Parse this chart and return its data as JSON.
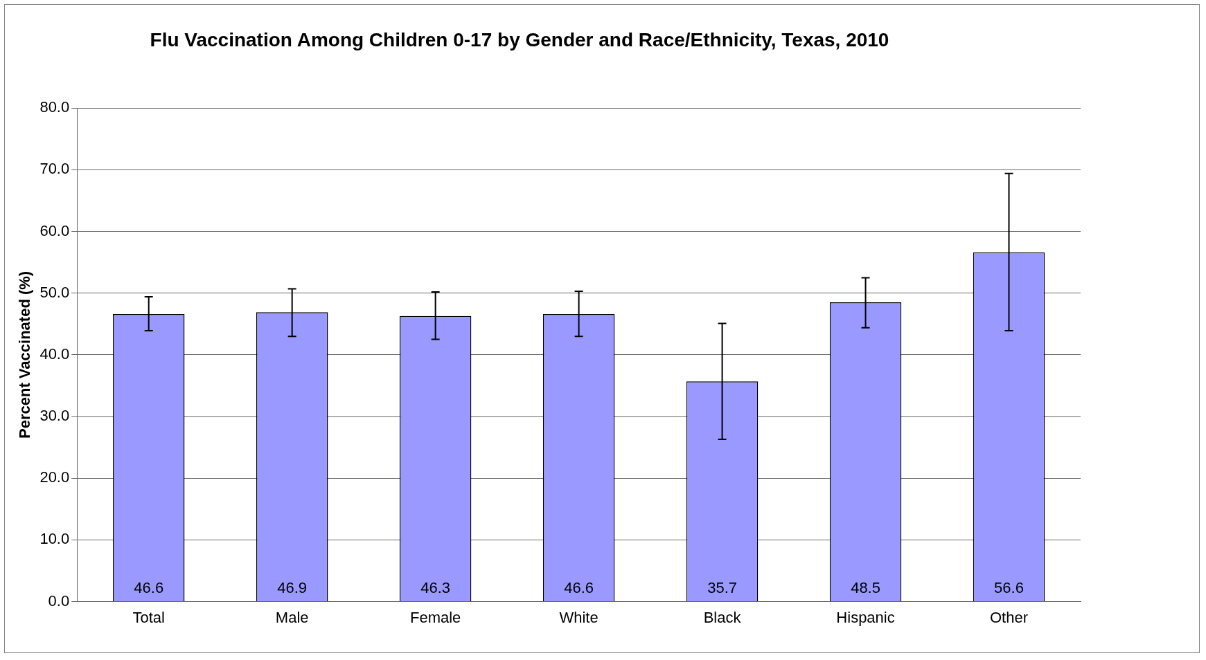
{
  "chart_data": {
    "type": "bar",
    "title": "Flu Vaccination Among Children 0-17 by Gender and Race/Ethnicity, Texas, 2010",
    "ylabel": "Percent Vaccinated (%)",
    "categories": [
      "Total",
      "Male",
      "Female",
      "White",
      "Black",
      "Hispanic",
      "Other"
    ],
    "values": [
      46.6,
      46.9,
      46.3,
      46.6,
      35.7,
      48.5,
      56.6
    ],
    "color": "#9999ff",
    "errors": [
      [
        43.9,
        49.4
      ],
      [
        43.0,
        50.7
      ],
      [
        42.5,
        50.2
      ],
      [
        43.0,
        50.3
      ],
      [
        26.3,
        45.1
      ],
      [
        44.4,
        52.5
      ],
      [
        43.9,
        69.4
      ]
    ],
    "ylim": [
      0,
      80
    ],
    "yticks": [
      {
        "value": 0,
        "label": "0.0"
      },
      {
        "value": 10,
        "label": "10.0"
      },
      {
        "value": 20,
        "label": "20.0"
      },
      {
        "value": 30,
        "label": "30.0"
      },
      {
        "value": 40,
        "label": "40.0"
      },
      {
        "value": 50,
        "label": "50.0"
      },
      {
        "value": 60,
        "label": "60.0"
      },
      {
        "value": 70,
        "label": "70.0"
      },
      {
        "value": 80,
        "label": "80.0"
      }
    ],
    "grid": "y",
    "legend": false,
    "data_labels": true
  }
}
